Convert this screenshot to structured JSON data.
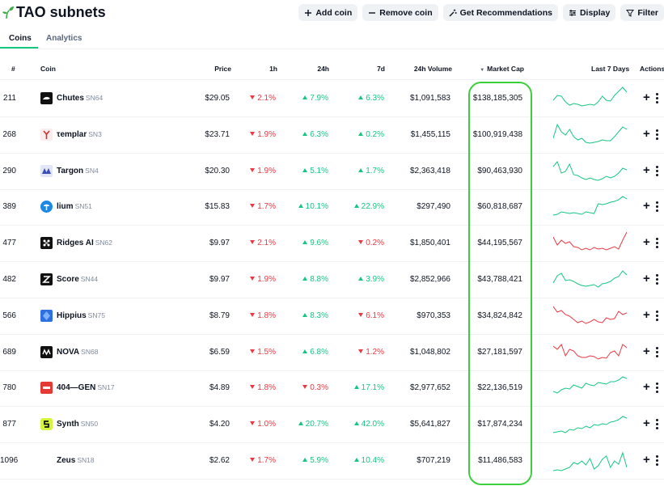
{
  "header": {
    "title": "TAO subnets",
    "buttons": [
      {
        "label": "Add coin",
        "icon": "plus-icon"
      },
      {
        "label": "Remove coin",
        "icon": "minus-icon"
      },
      {
        "label": "Get Recommendations",
        "icon": "magic-wand-icon"
      },
      {
        "label": "Display",
        "icon": "sliders-icon"
      },
      {
        "label": "Filter",
        "icon": "funnel-icon"
      }
    ]
  },
  "tabs": [
    {
      "label": "Coins",
      "active": true
    },
    {
      "label": "Analytics",
      "active": false
    }
  ],
  "table": {
    "columns": {
      "rank": "#",
      "coin": "Coin",
      "price": "Price",
      "h1": "1h",
      "h24": "24h",
      "d7": "7d",
      "volume": "24h Volume",
      "market_cap": "Market Cap",
      "last7": "Last 7 Days",
      "actions": "Actions"
    },
    "sort_indicator": "▼",
    "rows": [
      {
        "rank": "211",
        "name": "Chutes",
        "symbol": "SN64",
        "price": "$29.05",
        "h1": "2.1%",
        "h1_dir": "down",
        "h24": "7.9%",
        "h24_dir": "up",
        "d7": "6.3%",
        "d7_dir": "up",
        "volume": "$1,091,583",
        "market_cap": "$138,185,305",
        "spark_color": "#16c784",
        "logo_color": "#111111"
      },
      {
        "rank": "268",
        "name": "τemplar",
        "symbol": "SN3",
        "price": "$23.71",
        "h1": "1.9%",
        "h1_dir": "down",
        "h24": "6.3%",
        "h24_dir": "up",
        "d7": "0.2%",
        "d7_dir": "up",
        "volume": "$1,455,115",
        "market_cap": "$100,919,438",
        "spark_color": "#16c784",
        "logo_color": "#f3e6e6"
      },
      {
        "rank": "290",
        "name": "Targon",
        "symbol": "SN4",
        "price": "$20.30",
        "h1": "1.9%",
        "h1_dir": "down",
        "h24": "5.1%",
        "h24_dir": "up",
        "d7": "1.7%",
        "d7_dir": "up",
        "volume": "$2,363,418",
        "market_cap": "$90,463,930",
        "spark_color": "#16c784",
        "logo_color": "#dfe3f5"
      },
      {
        "rank": "389",
        "name": "lium",
        "symbol": "SN51",
        "price": "$15.83",
        "h1": "1.7%",
        "h1_dir": "down",
        "h24": "10.1%",
        "h24_dir": "up",
        "d7": "22.9%",
        "d7_dir": "up",
        "volume": "$297,490",
        "market_cap": "$60,818,687",
        "spark_color": "#16c784",
        "logo_color": "#1e88e5"
      },
      {
        "rank": "477",
        "name": "Ridges AI",
        "symbol": "SN62",
        "price": "$9.97",
        "h1": "2.1%",
        "h1_dir": "down",
        "h24": "9.6%",
        "h24_dir": "up",
        "d7": "0.2%",
        "d7_dir": "down",
        "volume": "$1,850,401",
        "market_cap": "$44,195,567",
        "spark_color": "#ea3943",
        "logo_color": "#111111"
      },
      {
        "rank": "482",
        "name": "Score",
        "symbol": "SN44",
        "price": "$9.97",
        "h1": "1.9%",
        "h1_dir": "down",
        "h24": "8.8%",
        "h24_dir": "up",
        "d7": "3.9%",
        "d7_dir": "up",
        "volume": "$2,852,966",
        "market_cap": "$43,788,421",
        "spark_color": "#16c784",
        "logo_color": "#111111"
      },
      {
        "rank": "566",
        "name": "Hippius",
        "symbol": "SN75",
        "price": "$8.79",
        "h1": "1.8%",
        "h1_dir": "down",
        "h24": "8.3%",
        "h24_dir": "up",
        "d7": "6.1%",
        "d7_dir": "down",
        "volume": "$970,353",
        "market_cap": "$34,824,842",
        "spark_color": "#ea3943",
        "logo_color": "#2f6fe0"
      },
      {
        "rank": "689",
        "name": "NOVA",
        "symbol": "SN68",
        "price": "$6.59",
        "h1": "1.5%",
        "h1_dir": "down",
        "h24": "6.8%",
        "h24_dir": "up",
        "d7": "1.2%",
        "d7_dir": "down",
        "volume": "$1,048,802",
        "market_cap": "$27,181,597",
        "spark_color": "#ea3943",
        "logo_color": "#111111"
      },
      {
        "rank": "780",
        "name": "404—GEN",
        "symbol": "SN17",
        "price": "$4.89",
        "h1": "1.8%",
        "h1_dir": "down",
        "h24": "0.3%",
        "h24_dir": "down",
        "d7": "17.1%",
        "d7_dir": "up",
        "volume": "$2,977,652",
        "market_cap": "$22,136,519",
        "spark_color": "#16c784",
        "logo_color": "#e53935"
      },
      {
        "rank": "877",
        "name": "Synth",
        "symbol": "SN50",
        "price": "$4.20",
        "h1": "1.0%",
        "h1_dir": "down",
        "h24": "20.7%",
        "h24_dir": "up",
        "d7": "42.0%",
        "d7_dir": "up",
        "volume": "$5,641,827",
        "market_cap": "$17,874,234",
        "spark_color": "#16c784",
        "logo_color": "#d4f53c"
      },
      {
        "rank": "1096",
        "name": "Zeus",
        "symbol": "SN18",
        "price": "$2.62",
        "h1": "1.7%",
        "h1_dir": "down",
        "h24": "5.9%",
        "h24_dir": "up",
        "d7": "10.4%",
        "d7_dir": "up",
        "volume": "$707,219",
        "market_cap": "$11,486,583",
        "spark_color": "#16c784",
        "logo_color": "#ffffff"
      }
    ]
  }
}
